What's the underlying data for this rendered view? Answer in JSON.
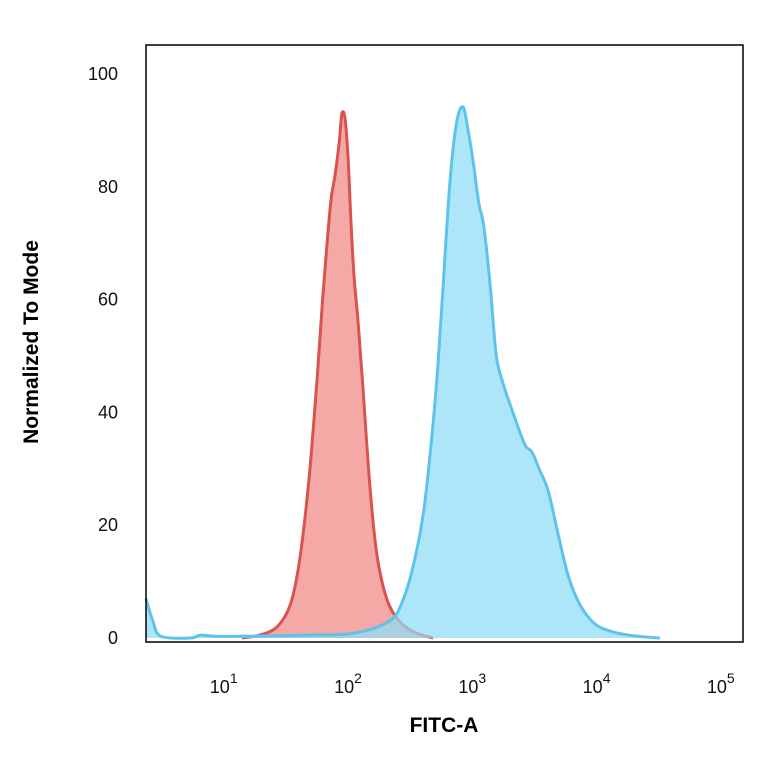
{
  "chart_data": {
    "type": "area",
    "title": "",
    "xlabel": "FITC-A",
    "ylabel": "Normalized To Mode",
    "x_scale": "log",
    "xlim": [
      2.2,
      140000
    ],
    "ylim": [
      0,
      100
    ],
    "y_ticks": [
      0,
      20,
      40,
      60,
      80,
      100
    ],
    "x_ticks": [
      {
        "value": 10,
        "base": "10",
        "exp": "1"
      },
      {
        "value": 100,
        "base": "10",
        "exp": "2"
      },
      {
        "value": 1000,
        "base": "10",
        "exp": "3"
      },
      {
        "value": 10000,
        "base": "10",
        "exp": "4"
      },
      {
        "value": 100000,
        "base": "10",
        "exp": "5"
      }
    ],
    "grid": false,
    "legend": "none",
    "series": [
      {
        "fill": "#f29a98",
        "stroke": "#d9534f",
        "points": [
          [
            13,
            0
          ],
          [
            18,
            0.5
          ],
          [
            25,
            2
          ],
          [
            32,
            6
          ],
          [
            38,
            14
          ],
          [
            45,
            28
          ],
          [
            52,
            45
          ],
          [
            58,
            60
          ],
          [
            63,
            70
          ],
          [
            68,
            78
          ],
          [
            73,
            82
          ],
          [
            79,
            88
          ],
          [
            83,
            93
          ],
          [
            88,
            92
          ],
          [
            93,
            85
          ],
          [
            98,
            74
          ],
          [
            104,
            64
          ],
          [
            112,
            56
          ],
          [
            122,
            45
          ],
          [
            138,
            28
          ],
          [
            158,
            15
          ],
          [
            190,
            7
          ],
          [
            240,
            3
          ],
          [
            320,
            1
          ],
          [
            450,
            0
          ]
        ]
      },
      {
        "fill": "#8fdcf7",
        "stroke": "#5ec3ea",
        "points": [
          [
            2.2,
            7
          ],
          [
            2.5,
            3
          ],
          [
            2.9,
            0.3
          ],
          [
            5,
            0
          ],
          [
            6,
            0.5
          ],
          [
            8,
            0.3
          ],
          [
            13,
            0.3
          ],
          [
            40,
            0.5
          ],
          [
            100,
            0.8
          ],
          [
            200,
            3
          ],
          [
            260,
            7
          ],
          [
            320,
            14
          ],
          [
            380,
            23
          ],
          [
            440,
            36
          ],
          [
            490,
            48
          ],
          [
            540,
            62
          ],
          [
            600,
            78
          ],
          [
            660,
            88
          ],
          [
            720,
            93
          ],
          [
            790,
            94
          ],
          [
            860,
            90
          ],
          [
            950,
            84
          ],
          [
            1050,
            77
          ],
          [
            1150,
            73
          ],
          [
            1300,
            62
          ],
          [
            1450,
            50
          ],
          [
            1650,
            45
          ],
          [
            1900,
            41
          ],
          [
            2200,
            37
          ],
          [
            2500,
            34
          ],
          [
            2800,
            33
          ],
          [
            3200,
            30
          ],
          [
            3800,
            26
          ],
          [
            4600,
            18
          ],
          [
            5500,
            11
          ],
          [
            6800,
            6
          ],
          [
            9000,
            2.5
          ],
          [
            13000,
            1
          ],
          [
            20000,
            0.3
          ],
          [
            30000,
            0
          ]
        ]
      }
    ]
  }
}
